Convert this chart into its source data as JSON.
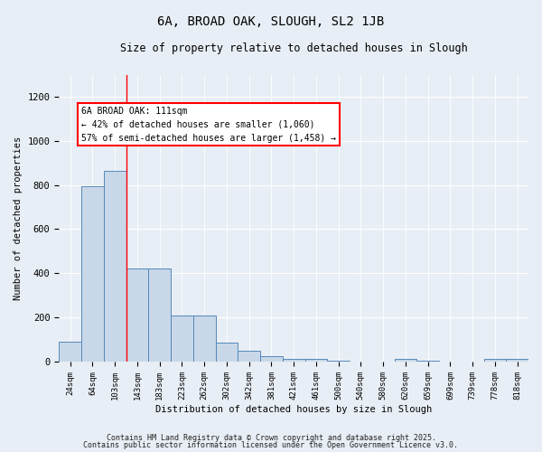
{
  "title1": "6A, BROAD OAK, SLOUGH, SL2 1JB",
  "title2": "Size of property relative to detached houses in Slough",
  "xlabel": "Distribution of detached houses by size in Slough",
  "ylabel": "Number of detached properties",
  "categories": [
    "24sqm",
    "64sqm",
    "103sqm",
    "143sqm",
    "183sqm",
    "223sqm",
    "262sqm",
    "302sqm",
    "342sqm",
    "381sqm",
    "421sqm",
    "461sqm",
    "500sqm",
    "540sqm",
    "580sqm",
    "620sqm",
    "659sqm",
    "699sqm",
    "739sqm",
    "778sqm",
    "818sqm"
  ],
  "values": [
    90,
    795,
    865,
    420,
    420,
    210,
    210,
    85,
    48,
    25,
    14,
    12,
    5,
    0,
    0,
    12,
    5,
    0,
    0,
    12,
    12
  ],
  "bar_color": "#c8d8e8",
  "bar_edge_color": "#5588bb",
  "bg_color": "#e8eef5",
  "vline_index": 2.5,
  "annotation_text": "6A BROAD OAK: 111sqm\n← 42% of detached houses are smaller (1,060)\n57% of semi-detached houses are larger (1,458) →",
  "footer1": "Contains HM Land Registry data © Crown copyright and database right 2025.",
  "footer2": "Contains public sector information licensed under the Open Government Licence v3.0.",
  "ylim": [
    0,
    1300
  ],
  "yticks": [
    0,
    200,
    400,
    600,
    800,
    1000,
    1200
  ]
}
